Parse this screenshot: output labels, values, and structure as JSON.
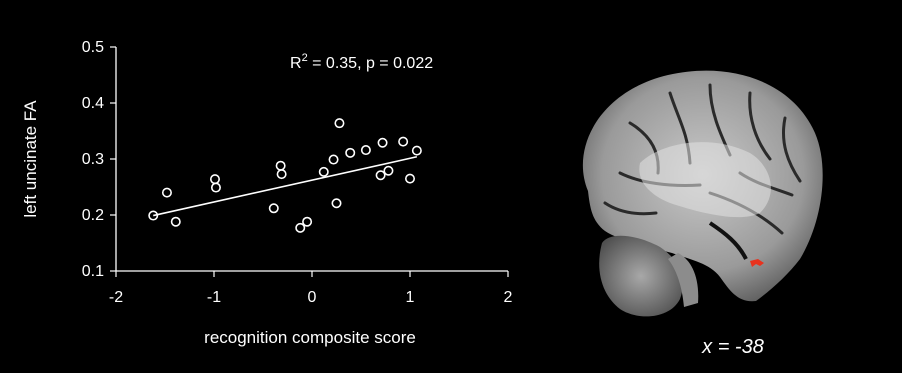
{
  "chart_data": {
    "type": "scatter",
    "xlabel": "recognition composite score",
    "ylabel": "left uncinate FA",
    "xlim": [
      -2,
      2
    ],
    "ylim": [
      0.1,
      0.5
    ],
    "x_ticks": [
      "-2",
      "-1",
      "0",
      "1",
      "2"
    ],
    "y_ticks": [
      "0.1",
      "0.2",
      "0.3",
      "0.4",
      "0.5"
    ],
    "annotation": {
      "r2_label": "R",
      "superscript": "2",
      "rest": " = 0.35, p = 0.022"
    },
    "points": [
      [
        -1.62,
        0.199
      ],
      [
        -1.48,
        0.24
      ],
      [
        -1.39,
        0.188
      ],
      [
        -0.99,
        0.264
      ],
      [
        -0.98,
        0.249
      ],
      [
        -0.39,
        0.212
      ],
      [
        -0.32,
        0.288
      ],
      [
        -0.31,
        0.273
      ],
      [
        -0.12,
        0.177
      ],
      [
        -0.05,
        0.188
      ],
      [
        0.12,
        0.277
      ],
      [
        0.22,
        0.299
      ],
      [
        0.25,
        0.221
      ],
      [
        0.28,
        0.364
      ],
      [
        0.39,
        0.311
      ],
      [
        0.55,
        0.316
      ],
      [
        0.7,
        0.271
      ],
      [
        0.72,
        0.329
      ],
      [
        0.78,
        0.279
      ],
      [
        0.93,
        0.331
      ],
      [
        1.0,
        0.265
      ],
      [
        1.07,
        0.315
      ]
    ],
    "fit": {
      "x": [
        -1.62,
        1.07
      ],
      "y": [
        0.199,
        0.304
      ]
    },
    "grid": false,
    "legend": "none"
  },
  "brain_panel": {
    "slice_label": "x = -38",
    "highlight_color": "#e8321e"
  },
  "colors": {
    "background": "#000000",
    "foreground": "#ffffff",
    "highlight": "#e8321e"
  }
}
